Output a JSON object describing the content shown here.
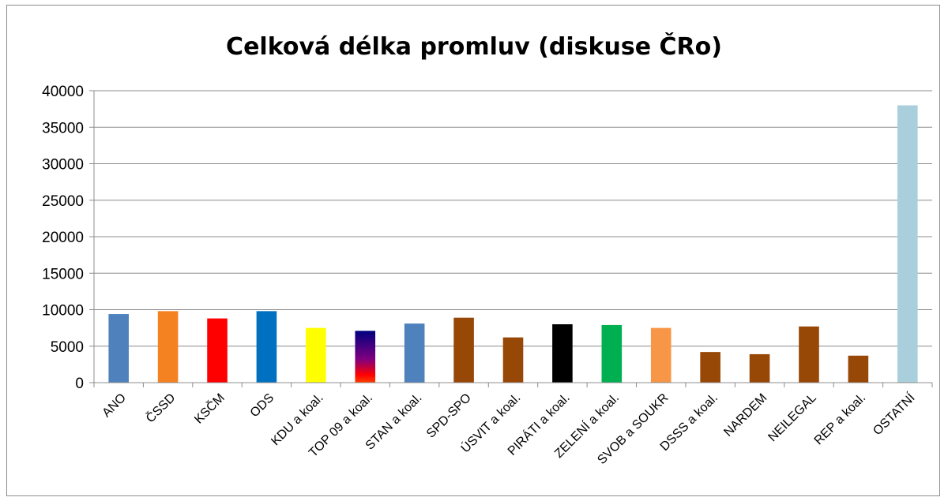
{
  "chart_data": {
    "type": "bar",
    "title": "Celková délka promluv (diskuse ČRo)",
    "xlabel": "",
    "ylabel": "",
    "ylim": [
      0,
      40000
    ],
    "yticks": [
      0,
      5000,
      10000,
      15000,
      20000,
      25000,
      30000,
      35000,
      40000
    ],
    "grid": true,
    "legend": "none",
    "categories": [
      "ANO",
      "ČSSD",
      "KSČM",
      "ODS",
      "KDU a koal.",
      "TOP 09 a koal.",
      "STAN a koal.",
      "SPD-SPO",
      "ÚSVIT a koal.",
      "PIRÁTI a koal.",
      "ZELENÍ a koal.",
      "SVOB a SOUKR",
      "DSSS a koal.",
      "NARDEM",
      "NEILEGAL",
      "REP a koal.",
      "OSTATNÍ"
    ],
    "values": [
      9400,
      9800,
      8800,
      9800,
      7500,
      7100,
      8100,
      8900,
      6200,
      8000,
      7900,
      7500,
      4200,
      3900,
      7700,
      3700,
      38000
    ],
    "colors": [
      "#4f81bd",
      "#f58220",
      "#ff0000",
      "#0070c0",
      "#ffff00",
      "gradient:#000080-#800080-#ff0000",
      "#4f81bd",
      "#974706",
      "#974706",
      "#000000",
      "#00b050",
      "#f79646",
      "#974706",
      "#974706",
      "#974706",
      "#974706",
      "#a9cfdc"
    ]
  }
}
